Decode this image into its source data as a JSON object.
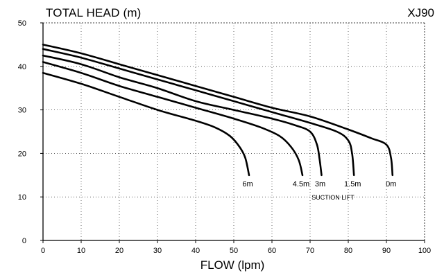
{
  "chart_data": {
    "type": "line",
    "title": "TOTAL HEAD (m)",
    "model": "XJ90",
    "xlabel": "FLOW (lpm)",
    "ylabel": "",
    "xlim": [
      0,
      100
    ],
    "ylim": [
      0,
      50
    ],
    "x_ticks": [
      "0",
      "10",
      "20",
      "30",
      "40",
      "50",
      "60",
      "70",
      "80",
      "90",
      "100"
    ],
    "y_ticks": [
      "0",
      "10",
      "20",
      "30",
      "40",
      "50"
    ],
    "annotation": "SUCTION LIFT",
    "series": [
      {
        "name": "6m",
        "points": [
          [
            0,
            38.5
          ],
          [
            10,
            36
          ],
          [
            20,
            33
          ],
          [
            30,
            30
          ],
          [
            40,
            27.5
          ],
          [
            45,
            26
          ],
          [
            49,
            24
          ],
          [
            51.5,
            21.5
          ],
          [
            53,
            19
          ],
          [
            54,
            15
          ]
        ]
      },
      {
        "name": "4.5m",
        "points": [
          [
            0,
            41
          ],
          [
            10,
            38.5
          ],
          [
            20,
            35.5
          ],
          [
            30,
            33
          ],
          [
            40,
            30.5
          ],
          [
            50,
            28
          ],
          [
            57,
            26
          ],
          [
            62,
            24
          ],
          [
            65,
            21.5
          ],
          [
            67,
            18.5
          ],
          [
            68,
            15
          ]
        ]
      },
      {
        "name": "3m",
        "points": [
          [
            0,
            42.5
          ],
          [
            10,
            40.5
          ],
          [
            20,
            37.5
          ],
          [
            30,
            35
          ],
          [
            40,
            32
          ],
          [
            50,
            30
          ],
          [
            60,
            28
          ],
          [
            66,
            26.5
          ],
          [
            70,
            25
          ],
          [
            71.8,
            22
          ],
          [
            72.5,
            18.5
          ],
          [
            73,
            15
          ]
        ]
      },
      {
        "name": "1.5m",
        "points": [
          [
            0,
            44
          ],
          [
            10,
            42
          ],
          [
            20,
            39.5
          ],
          [
            30,
            37
          ],
          [
            40,
            34.5
          ],
          [
            50,
            32
          ],
          [
            60,
            29.5
          ],
          [
            70,
            27
          ],
          [
            77,
            25
          ],
          [
            80,
            23
          ],
          [
            81,
            20
          ],
          [
            81.5,
            15
          ]
        ]
      },
      {
        "name": "0m",
        "points": [
          [
            0,
            45
          ],
          [
            10,
            43
          ],
          [
            20,
            40.5
          ],
          [
            30,
            38
          ],
          [
            40,
            35.5
          ],
          [
            50,
            33
          ],
          [
            60,
            30.5
          ],
          [
            70,
            28.5
          ],
          [
            80,
            25.5
          ],
          [
            86,
            23.5
          ],
          [
            90,
            22
          ],
          [
            91.2,
            19
          ],
          [
            91.6,
            15
          ]
        ]
      }
    ]
  }
}
